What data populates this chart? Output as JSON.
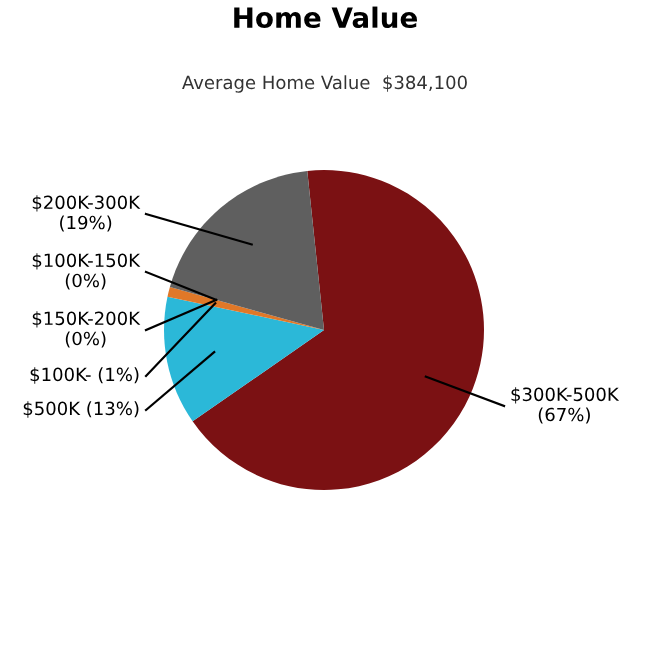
{
  "chart_data": {
    "type": "pie",
    "title": "Home Value",
    "subtitle": "Average Home Value  $384,100",
    "categories": [
      "$300K-500K",
      "$500K",
      "$100K-",
      "$150K-200K",
      "$100K-150K",
      "$200K-300K"
    ],
    "values": [
      67,
      13,
      1,
      0,
      0,
      19
    ],
    "value_labels": [
      "(67%)",
      "(13%)",
      "(1%)",
      "(0%)",
      "(0%)",
      "(19%)"
    ],
    "colors": [
      "#7b1113",
      "#2bb8d8",
      "#e07828",
      "#f0a868",
      "#c86020",
      "#5f5f5f"
    ]
  }
}
